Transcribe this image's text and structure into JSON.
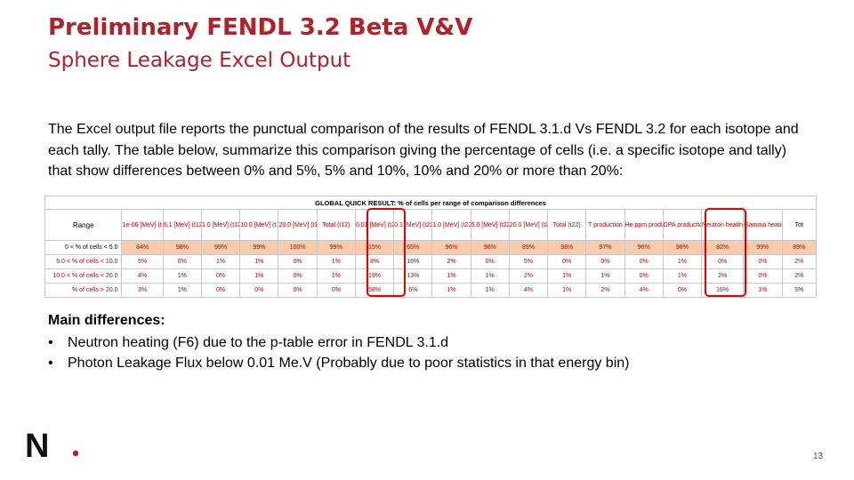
{
  "slide": {
    "title": "Preliminary FENDL 3.2 Beta V&V",
    "subtitle": "Sphere Leakage Excel Output",
    "paragraph": "The Excel output file reports the punctual comparison of the results of FENDL 3.1.d Vs FENDL 3.2 for each isotope and each tally. The table below, summarize this comparison giving the percentage of cells (i.e. a specific isotope and tally) that show differences between 0% and 5%, 5% and 10%, 10% and 20% or more than 20%:",
    "main_heading": "Main differences:",
    "bullets": [
      "Neutron heating (F6) due to the p-table error in FENDL 3.1.d",
      "Photon Leakage Flux below 0.01 Me.V (Probably due to poor statistics in that energy bin)"
    ],
    "bullet_marker": "•",
    "page_number": "13",
    "logo_letter": "N",
    "accent_color": "#b0222a"
  },
  "table": {
    "caption": "GLOBAL QUICK RESULT: % of cells per range of comparison differences",
    "headers": [
      "Range",
      "1e-06 [MeV] (t12)",
      "0.1 [MeV] (t12)",
      "1.0 [MeV] (t12)",
      "10.0 [MeV] (t12)",
      "20.0 [MeV] (t12)",
      "Total (t12)",
      "0.01 [MeV] (t22)",
      "0.1 [MeV] (t22)",
      "1.0 [MeV] (t22)",
      "5.0 [MeV] (t22)",
      "20.0 [MeV] (t22)",
      "Total (t22)",
      "T production",
      "He ppm production",
      "DPA production",
      "Neutron heating F6",
      "Gamma heating F6",
      "Tot"
    ],
    "rows": [
      [
        "0 < % of cells < 5.0",
        "84%",
        "98%",
        "99%",
        "99%",
        "100%",
        "99%",
        "15%",
        "65%",
        "96%",
        "98%",
        "89%",
        "98%",
        "97%",
        "96%",
        "98%",
        "82%",
        "99%",
        "89%"
      ],
      [
        "5.0 < % of cells < 10.0",
        "5%",
        "0%",
        "1%",
        "1%",
        "0%",
        "1%",
        "8%",
        "16%",
        "2%",
        "0%",
        "5%",
        "0%",
        "0%",
        "0%",
        "1%",
        "0%",
        "0%",
        "2%"
      ],
      [
        "10.0 < % of cells < 20.0",
        "4%",
        "1%",
        "0%",
        "1%",
        "0%",
        "1%",
        "19%",
        "13%",
        "1%",
        "1%",
        "2%",
        "1%",
        "1%",
        "0%",
        "1%",
        "2%",
        "0%",
        "2%"
      ],
      [
        "% of cells > 20.0",
        "3%",
        "1%",
        "0%",
        "0%",
        "0%",
        "0%",
        "58%",
        "6%",
        "1%",
        "1%",
        "4%",
        "1%",
        "2%",
        "4%",
        "0%",
        "16%",
        "1%",
        "5%"
      ]
    ]
  }
}
